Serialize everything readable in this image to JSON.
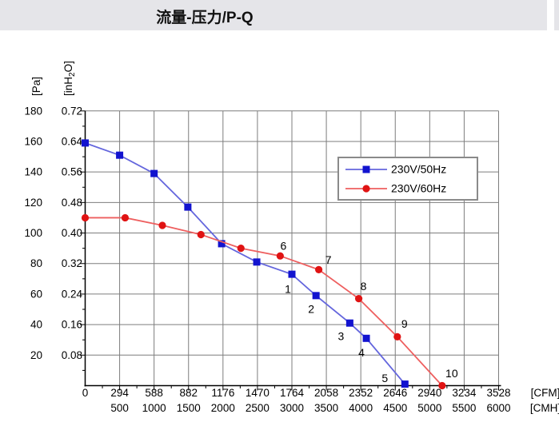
{
  "title": "流量-压力/P-Q",
  "panel": {
    "titlebar_bg": "#e5e5e9"
  },
  "chart_data": {
    "type": "line",
    "title": "流量-压力/P-Q",
    "grid": true,
    "legend_position": "upper-right-inside",
    "x_axis": {
      "primary_label": "[CFM]",
      "secondary_label": "[CMH]",
      "primary_ticks": [
        0,
        294,
        588,
        882,
        1176,
        1470,
        1764,
        2058,
        2352,
        2646,
        2940,
        3234,
        3528
      ],
      "secondary_ticks": [
        500,
        1000,
        1500,
        2000,
        2500,
        3000,
        3500,
        4000,
        4500,
        5000,
        5500,
        6000
      ],
      "range_cmh": [
        0,
        6000
      ]
    },
    "y_axis": {
      "primary_label": "[Pa]",
      "secondary_label": "[inH2O]",
      "secondary_label_parts": {
        "pre": "[inH",
        "sub": "2",
        "post": "O]"
      },
      "primary_ticks": [
        20,
        40,
        60,
        80,
        100,
        120,
        140,
        160,
        180
      ],
      "secondary_ticks": [
        "0.08",
        "0.16",
        "0.24",
        "0.32",
        "0.40",
        "0.48",
        "0.56",
        "0.64",
        "0.72"
      ],
      "range_pa": [
        0,
        180
      ]
    },
    "series": [
      {
        "name": "230V/50Hz",
        "marker": "square",
        "line_color": "#6466dd",
        "marker_color": "#1213cf",
        "points_cmh_pa": [
          [
            0,
            159
          ],
          [
            500,
            151
          ],
          [
            1000,
            139
          ],
          [
            1490,
            117
          ],
          [
            1980,
            93
          ],
          [
            2490,
            81
          ],
          [
            3000,
            73
          ],
          [
            3350,
            59
          ],
          [
            3840,
            41
          ],
          [
            4080,
            31
          ],
          [
            4640,
            1
          ]
        ],
        "point_labels": [
          {
            "index": 6,
            "text": "1",
            "dx": -5,
            "dy": 19
          },
          {
            "index": 7,
            "text": "2",
            "dx": -6,
            "dy": 17
          },
          {
            "index": 8,
            "text": "3",
            "dx": -11,
            "dy": 17
          },
          {
            "index": 9,
            "text": "4",
            "dx": -6,
            "dy": 18
          },
          {
            "index": 10,
            "text": "5",
            "dx": -25,
            "dy": -7
          }
        ]
      },
      {
        "name": "230V/60Hz",
        "marker": "circle",
        "line_color": "#ee5f5f",
        "marker_color": "#e01313",
        "points_cmh_pa": [
          [
            0,
            110
          ],
          [
            580,
            110
          ],
          [
            1120,
            105
          ],
          [
            1680,
            99
          ],
          [
            2260,
            90
          ],
          [
            2830,
            85
          ],
          [
            3390,
            76
          ],
          [
            3970,
            57
          ],
          [
            4530,
            32
          ],
          [
            5180,
            0
          ]
        ],
        "point_labels": [
          {
            "index": 5,
            "text": "6",
            "dx": 4,
            "dy": -12
          },
          {
            "index": 6,
            "text": "7",
            "dx": 12,
            "dy": -12
          },
          {
            "index": 7,
            "text": "8",
            "dx": 6,
            "dy": -15
          },
          {
            "index": 8,
            "text": "9",
            "dx": 9,
            "dy": -16
          },
          {
            "index": 9,
            "text": "10",
            "dx": 12,
            "dy": -15
          }
        ]
      }
    ],
    "colors": {
      "grid": "#7d7d7d",
      "axis": "#000000",
      "legend_border": "#8a8a8a",
      "label": "#000000"
    }
  }
}
